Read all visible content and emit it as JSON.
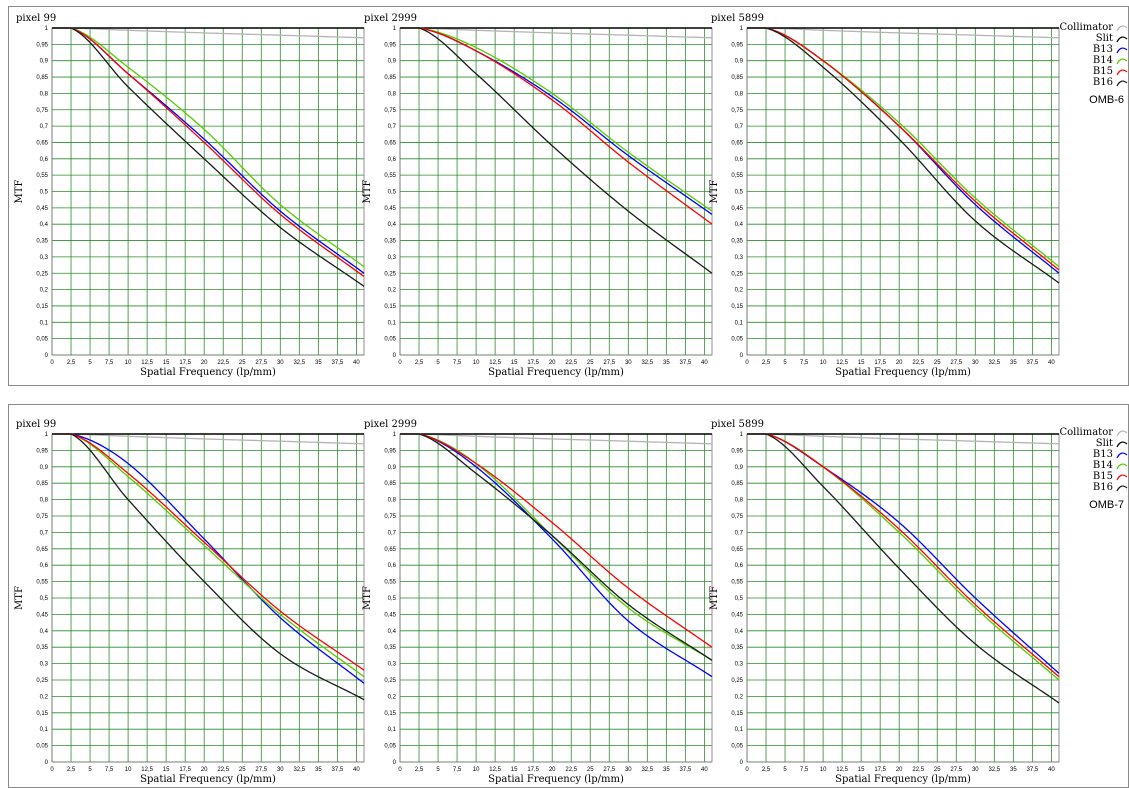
{
  "colors": {
    "grid": "#2e8b2e",
    "Collimator": "#b4b4b4",
    "Slit": "#000000",
    "B13": "#0000ff",
    "B14": "#55cc00",
    "B15": "#ff0000",
    "B16": "#1a1a1a"
  },
  "legend": {
    "items": [
      "Collimator",
      "Slit",
      "B13",
      "B14",
      "B15",
      "B16"
    ],
    "top_group": "OMB-6",
    "bottom_group": "OMB-7"
  },
  "axis": {
    "xlabel": "Spatial Frequency (lp/mm)",
    "ylabel": "MTF",
    "x_ticks": [
      "0",
      "2,5",
      "5",
      "7,5",
      "10",
      "12,5",
      "15",
      "17,5",
      "20",
      "22,5",
      "25",
      "27,5",
      "30",
      "32,5",
      "35",
      "37,5",
      "40"
    ],
    "y_ticks": [
      "0",
      "0,05",
      "0,1",
      "0,15",
      "0,2",
      "0,25",
      "0,3",
      "0,35",
      "0,4",
      "0,45",
      "0,5",
      "0,55",
      "0,6",
      "0,65",
      "0,7",
      "0,75",
      "0,8",
      "0,85",
      "0,9",
      "0,95",
      "1"
    ],
    "xlim": [
      0,
      41
    ],
    "ylim": [
      0,
      1
    ]
  },
  "chart_data": [
    {
      "type": "line",
      "group": "OMB-6",
      "title": "pixel 99",
      "x": [
        2.5,
        10,
        20,
        30,
        41
      ],
      "series": [
        {
          "name": "Collimator",
          "values": [
            1.0,
            0.993,
            0.985,
            0.978,
            0.97
          ]
        },
        {
          "name": "Slit",
          "values": [
            1,
            1,
            1,
            1,
            1
          ]
        },
        {
          "name": "B13",
          "values": [
            1.0,
            0.86,
            0.66,
            0.44,
            0.25
          ]
        },
        {
          "name": "B14",
          "values": [
            1.0,
            0.88,
            0.69,
            0.46,
            0.27
          ]
        },
        {
          "name": "B15",
          "values": [
            1.0,
            0.86,
            0.65,
            0.43,
            0.24
          ]
        },
        {
          "name": "B16",
          "values": [
            1.0,
            0.82,
            0.6,
            0.39,
            0.21
          ]
        }
      ]
    },
    {
      "type": "line",
      "group": "OMB-6",
      "title": "pixel 2999",
      "x": [
        2.5,
        10,
        20,
        30,
        41
      ],
      "series": [
        {
          "name": "Collimator",
          "values": [
            1.0,
            0.993,
            0.985,
            0.978,
            0.97
          ]
        },
        {
          "name": "Slit",
          "values": [
            1,
            1,
            1,
            1,
            1
          ]
        },
        {
          "name": "B13",
          "values": [
            1.0,
            0.93,
            0.79,
            0.61,
            0.43
          ]
        },
        {
          "name": "B14",
          "values": [
            1.0,
            0.94,
            0.8,
            0.62,
            0.44
          ]
        },
        {
          "name": "B15",
          "values": [
            1.0,
            0.93,
            0.78,
            0.59,
            0.4
          ]
        },
        {
          "name": "B16",
          "values": [
            1.0,
            0.86,
            0.64,
            0.44,
            0.25
          ]
        }
      ]
    },
    {
      "type": "line",
      "group": "OMB-6",
      "title": "pixel 5899",
      "x": [
        2.5,
        10,
        20,
        30,
        41
      ],
      "series": [
        {
          "name": "Collimator",
          "values": [
            1.0,
            0.993,
            0.985,
            0.978,
            0.97
          ]
        },
        {
          "name": "Slit",
          "values": [
            1,
            1,
            1,
            1,
            1
          ]
        },
        {
          "name": "B13",
          "values": [
            1.0,
            0.9,
            0.7,
            0.46,
            0.25
          ]
        },
        {
          "name": "B14",
          "values": [
            1.0,
            0.9,
            0.71,
            0.48,
            0.27
          ]
        },
        {
          "name": "B15",
          "values": [
            1.0,
            0.9,
            0.7,
            0.47,
            0.26
          ]
        },
        {
          "name": "B16",
          "values": [
            1.0,
            0.88,
            0.66,
            0.41,
            0.22
          ]
        }
      ]
    },
    {
      "type": "line",
      "group": "OMB-7",
      "title": "pixel 99",
      "x": [
        2.5,
        10,
        20,
        30,
        41
      ],
      "series": [
        {
          "name": "Collimator",
          "values": [
            1.0,
            0.993,
            0.985,
            0.978,
            0.97
          ]
        },
        {
          "name": "Slit",
          "values": [
            1,
            1,
            1,
            1,
            1
          ]
        },
        {
          "name": "B13",
          "values": [
            1.0,
            0.91,
            0.68,
            0.44,
            0.24
          ]
        },
        {
          "name": "B14",
          "values": [
            1.0,
            0.87,
            0.66,
            0.45,
            0.26
          ]
        },
        {
          "name": "B15",
          "values": [
            1.0,
            0.88,
            0.67,
            0.46,
            0.28
          ]
        },
        {
          "name": "B16",
          "values": [
            1.0,
            0.8,
            0.55,
            0.33,
            0.19
          ]
        }
      ]
    },
    {
      "type": "line",
      "group": "OMB-7",
      "title": "pixel 2999",
      "x": [
        2.5,
        10,
        20,
        30,
        41
      ],
      "series": [
        {
          "name": "Collimator",
          "values": [
            1.0,
            0.993,
            0.985,
            0.978,
            0.97
          ]
        },
        {
          "name": "Slit",
          "values": [
            1,
            1,
            1,
            1,
            1
          ]
        },
        {
          "name": "B13",
          "values": [
            1.0,
            0.9,
            0.68,
            0.43,
            0.26
          ]
        },
        {
          "name": "B14",
          "values": [
            1.0,
            0.91,
            0.69,
            0.47,
            0.31
          ]
        },
        {
          "name": "B15",
          "values": [
            1.0,
            0.91,
            0.73,
            0.53,
            0.35
          ]
        },
        {
          "name": "B16",
          "values": [
            1.0,
            0.88,
            0.69,
            0.48,
            0.31
          ]
        }
      ]
    },
    {
      "type": "line",
      "group": "OMB-7",
      "title": "pixel 5899",
      "x": [
        2.5,
        10,
        20,
        30,
        41
      ],
      "series": [
        {
          "name": "Collimator",
          "values": [
            1.0,
            0.993,
            0.985,
            0.978,
            0.97
          ]
        },
        {
          "name": "Slit",
          "values": [
            1,
            1,
            1,
            1,
            1
          ]
        },
        {
          "name": "B13",
          "values": [
            1.0,
            0.9,
            0.73,
            0.5,
            0.27
          ]
        },
        {
          "name": "B14",
          "values": [
            1.0,
            0.9,
            0.7,
            0.47,
            0.25
          ]
        },
        {
          "name": "B15",
          "values": [
            1.0,
            0.9,
            0.71,
            0.48,
            0.26
          ]
        },
        {
          "name": "B16",
          "values": [
            1.0,
            0.84,
            0.59,
            0.36,
            0.18
          ]
        }
      ]
    }
  ]
}
